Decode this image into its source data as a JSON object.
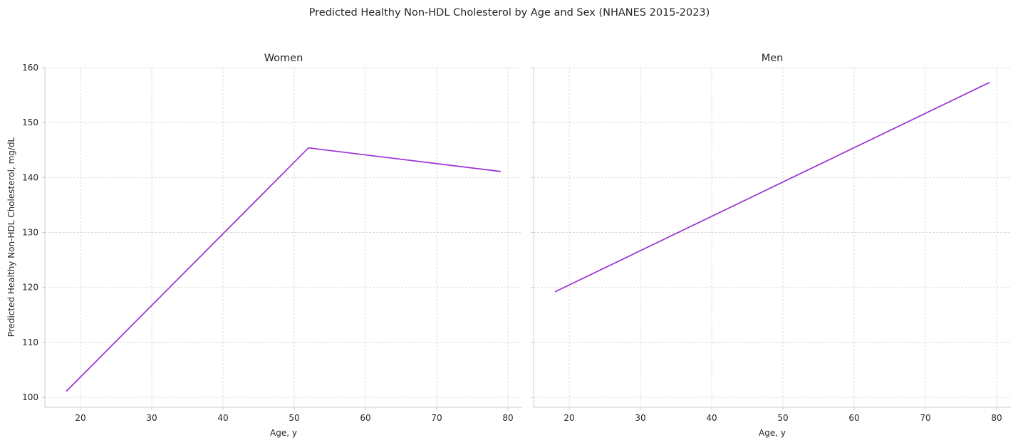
{
  "chart_data": {
    "type": "line",
    "title": "Predicted Healthy Non-HDL Cholesterol by Age and Sex (NHANES 2015-2023)",
    "ylabel": "Predicted Healthy Non-HDL Cholesterol, mg/dL",
    "xlim": [
      15,
      82
    ],
    "ylim": [
      98.2,
      160
    ],
    "xticks": [
      20,
      30,
      40,
      50,
      60,
      70,
      80
    ],
    "yticks": [
      100,
      110,
      120,
      130,
      140,
      150,
      160
    ],
    "grid": true,
    "line_color": "#9b30d0",
    "panels": [
      {
        "title": "Women",
        "xlabel": "Age, y",
        "x": [
          18,
          52,
          79
        ],
        "y": [
          101.1,
          145.4,
          141.1
        ]
      },
      {
        "title": "Men",
        "xlabel": "Age, y",
        "x": [
          18,
          79
        ],
        "y": [
          119.2,
          157.3
        ]
      }
    ]
  }
}
